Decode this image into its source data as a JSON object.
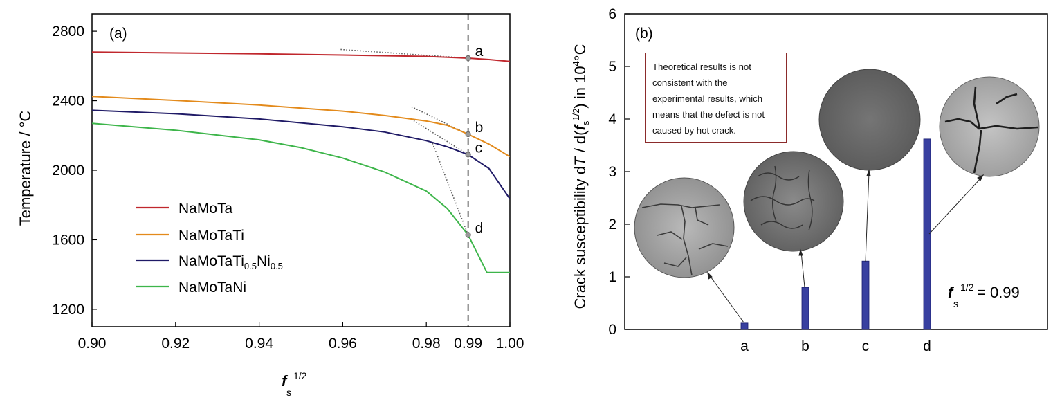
{
  "chart_data": [
    {
      "panel": "(a)",
      "type": "line",
      "ylabel": "Temperature / °C",
      "ylabel_main": "Temperature / ",
      "ylabel_unit": "°C",
      "xlabel_var": "f",
      "xlabel_sub": "s",
      "xlabel_sup": "1/2",
      "xlim": [
        0.9,
        1.0
      ],
      "ylim": [
        1100,
        2900
      ],
      "xticks": [
        0.9,
        0.92,
        0.94,
        0.96,
        0.98,
        1.0
      ],
      "xtick_labels": [
        "0.90",
        "0.92",
        "0.94",
        "0.96",
        "0.98",
        "1.00"
      ],
      "extra_xtick": {
        "value": 0.99,
        "label": "0.99"
      },
      "yticks": [
        1200,
        1600,
        2000,
        2400,
        2800
      ],
      "ytick_labels": [
        "1200",
        "1600",
        "2000",
        "2400",
        "2800"
      ],
      "series": [
        {
          "name": "NaMoTa",
          "color": "#c0272d",
          "x": [
            0.9,
            0.92,
            0.94,
            0.96,
            0.98,
            0.99,
            0.995,
            1.0
          ],
          "y": [
            2680,
            2675,
            2670,
            2663,
            2655,
            2645,
            2637,
            2626
          ]
        },
        {
          "name": "NaMoTaTi",
          "color": "#e38a1b",
          "x": [
            0.9,
            0.92,
            0.94,
            0.96,
            0.97,
            0.98,
            0.985,
            0.99,
            0.995,
            1.0
          ],
          "y": [
            2425,
            2402,
            2375,
            2340,
            2315,
            2283,
            2259,
            2207,
            2150,
            2078
          ]
        },
        {
          "name": "NaMoTaTi0.5Ni0.5",
          "name_main": "NaMoTaTi",
          "name_sub1": "0.5",
          "name_mid": "Ni",
          "name_sub2": "0.5",
          "color": "#1f1a66",
          "x": [
            0.9,
            0.92,
            0.94,
            0.96,
            0.97,
            0.98,
            0.985,
            0.99,
            0.995,
            1.0
          ],
          "y": [
            2345,
            2325,
            2295,
            2250,
            2220,
            2170,
            2135,
            2090,
            2010,
            1835
          ]
        },
        {
          "name": "NaMoTaNi",
          "color": "#3db54a",
          "x": [
            0.9,
            0.92,
            0.94,
            0.95,
            0.96,
            0.97,
            0.98,
            0.985,
            0.99,
            0.9945,
            0.995,
            1.0
          ],
          "y": [
            2270,
            2230,
            2175,
            2130,
            2070,
            1990,
            1880,
            1780,
            1628,
            1412,
            1412,
            1412
          ]
        }
      ],
      "vline_x": 0.99,
      "markers": [
        {
          "label": "a",
          "x": 0.99,
          "y": 2645
        },
        {
          "label": "b",
          "x": 0.99,
          "y": 2207
        },
        {
          "label": "c",
          "x": 0.99,
          "y": 2090
        },
        {
          "label": "d",
          "x": 0.99,
          "y": 1628
        }
      ],
      "tangents": [
        {
          "label": "a",
          "x0": 0.9595,
          "y0": 2695,
          "x1": 0.99,
          "y1": 2645
        },
        {
          "label": "b",
          "x0": 0.9765,
          "y0": 2365,
          "x1": 0.99,
          "y1": 2207
        },
        {
          "label": "c",
          "x0": 0.977,
          "y0": 2285,
          "x1": 0.99,
          "y1": 2090
        },
        {
          "label": "d",
          "x0": 0.9815,
          "y0": 2155,
          "x1": 0.99,
          "y1": 1628
        }
      ],
      "legend": "lower-left"
    },
    {
      "panel": "(b)",
      "type": "bar",
      "ylabel_parts": [
        "Crack susceptibility d",
        "T",
        " / d(",
        "f",
        "s",
        "1/2",
        ") in 10",
        "4",
        "°C"
      ],
      "ylim": [
        0,
        6
      ],
      "yticks": [
        0,
        1,
        2,
        3,
        4,
        5,
        6
      ],
      "ytick_labels": [
        "0",
        "1",
        "2",
        "3",
        "4",
        "5",
        "6"
      ],
      "categories": [
        "a",
        "b",
        "c",
        "d"
      ],
      "values": [
        0.12,
        0.8,
        1.3,
        3.62
      ],
      "bar_color": "#3840a0",
      "annotation_var": "f",
      "annotation_sub": "s",
      "annotation_sup": "1/2",
      "annotation_value": " = 0.99",
      "note_lines": [
        "Theoretical results is not",
        "consistent with the",
        "experimental results, which",
        "means that the defect is not",
        "caused by hot crack."
      ]
    }
  ]
}
